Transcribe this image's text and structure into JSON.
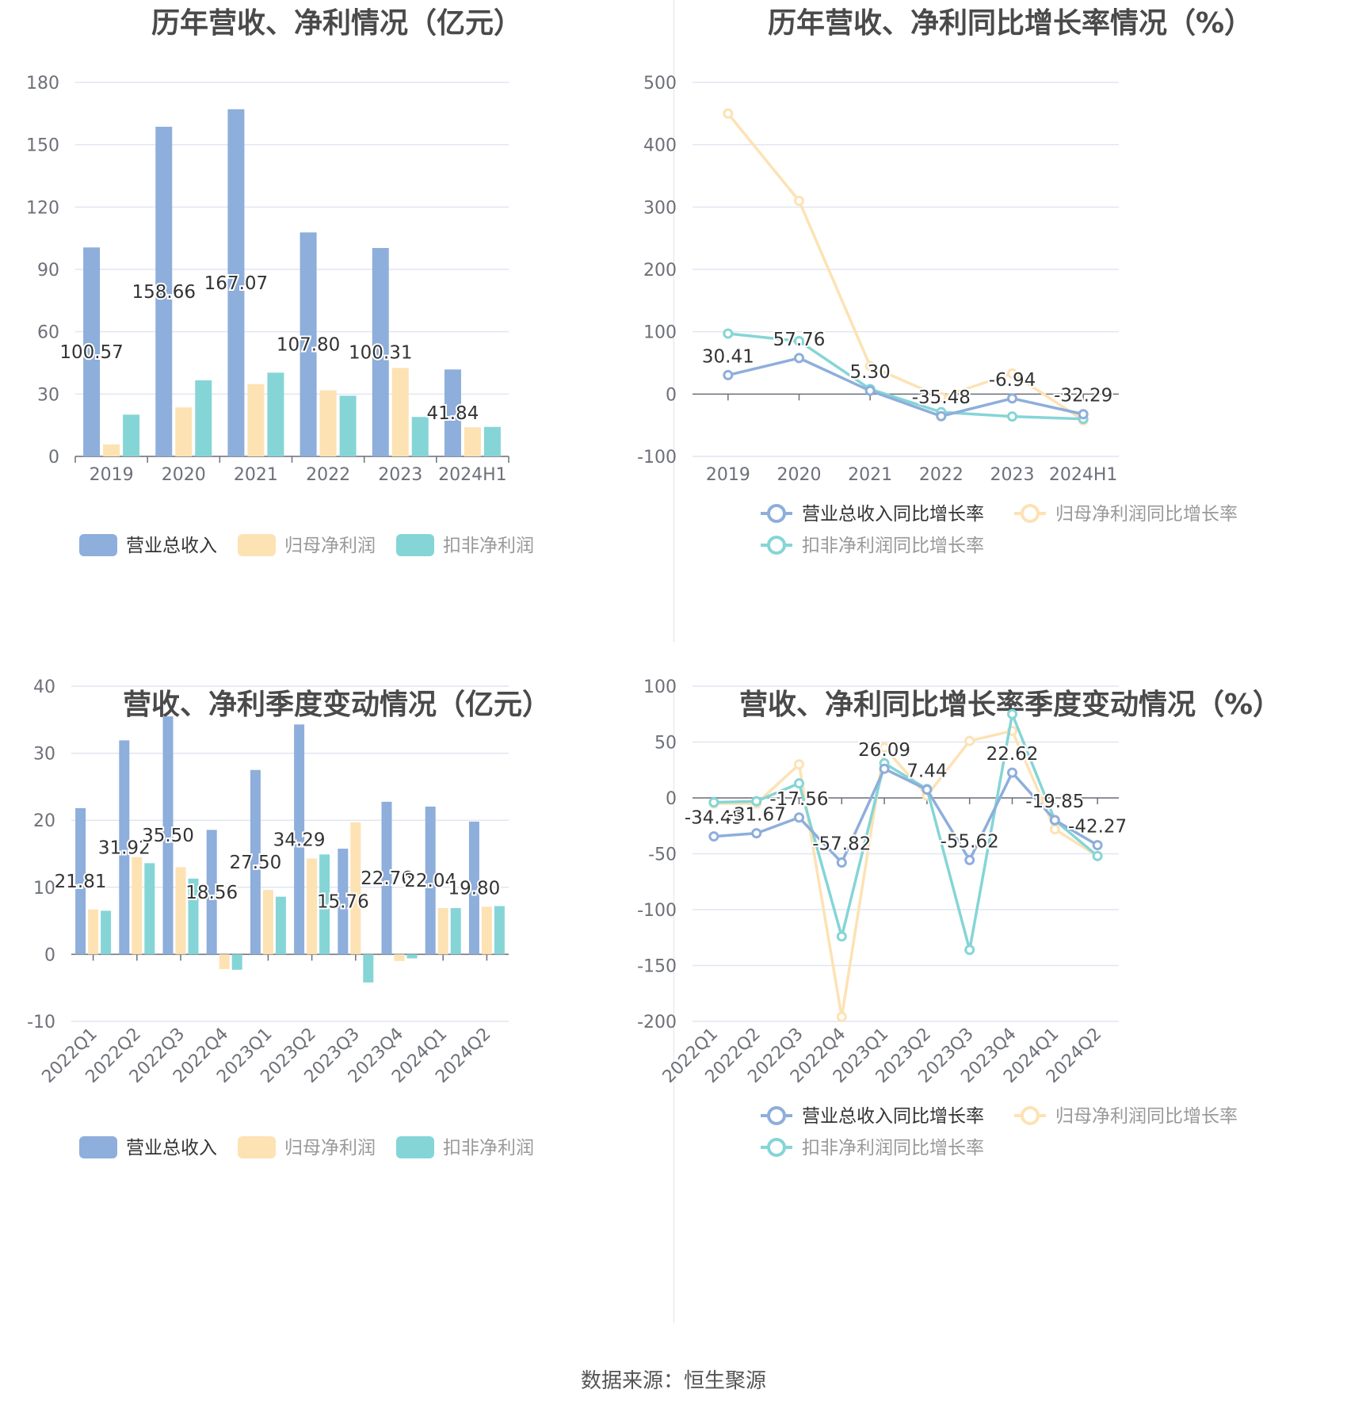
{
  "colors": {
    "revenue": "#8eaedb",
    "netprofit": "#fde2b4",
    "deducted": "#85d5d6",
    "axis": "#6e7079",
    "grid": "#e0e6f1",
    "text": "#333333"
  },
  "source_text": "数据来源：恒生聚源",
  "chart_data": [
    {
      "type": "bar",
      "title": "历年营收、净利情况（亿元）",
      "categories": [
        "2019",
        "2020",
        "2021",
        "2022",
        "2023",
        "2024H1"
      ],
      "ylim": [
        0,
        180
      ],
      "yticks": [
        "0",
        "30",
        "60",
        "90",
        "120",
        "150",
        "180"
      ],
      "grid": true,
      "legend_position": "bottom",
      "series": [
        {
          "name": "营业总收入",
          "values": [
            100.57,
            158.66,
            167.07,
            107.8,
            100.31,
            41.84
          ],
          "labels": [
            "100.57",
            "158.66",
            "167.07",
            "107.80",
            "100.31",
            "41.84"
          ]
        },
        {
          "name": "归母净利润",
          "values": [
            5.8,
            23.6,
            34.8,
            31.8,
            42.6,
            14.0
          ]
        },
        {
          "name": "扣非净利润",
          "values": [
            20.1,
            36.6,
            40.3,
            29.2,
            19.0,
            14.2
          ]
        }
      ]
    },
    {
      "type": "line",
      "title": "历年营收、净利同比增长率情况（%）",
      "categories": [
        "2019",
        "2020",
        "2021",
        "2022",
        "2023",
        "2024H1"
      ],
      "ylim": [
        -100,
        500
      ],
      "yticks": [
        "-100",
        "0",
        "100",
        "200",
        "300",
        "400",
        "500"
      ],
      "grid": true,
      "legend_position": "bottom",
      "series": [
        {
          "name": "营业总收入同比增长率",
          "values": [
            30.41,
            57.76,
            5.3,
            -35.48,
            -6.94,
            -32.29
          ],
          "labels": [
            "30.41",
            "57.76",
            "5.30",
            "-35.48",
            "-6.94",
            "-32.29"
          ]
        },
        {
          "name": "归母净利润同比增长率",
          "values": [
            450,
            310,
            45,
            -5,
            33,
            -42
          ]
        },
        {
          "name": "扣非净利润同比增长率",
          "values": [
            97,
            85,
            8,
            -29,
            -36,
            -40
          ]
        }
      ]
    },
    {
      "type": "bar",
      "title": "营收、净利季度变动情况（亿元）",
      "categories": [
        "2022Q1",
        "2022Q2",
        "2022Q3",
        "2022Q4",
        "2023Q1",
        "2023Q2",
        "2023Q3",
        "2023Q4",
        "2024Q1",
        "2024Q2"
      ],
      "ylim": [
        -10,
        40
      ],
      "yticks": [
        "-10",
        "0",
        "10",
        "20",
        "30",
        "40"
      ],
      "grid": true,
      "legend_position": "bottom",
      "series": [
        {
          "name": "营业总收入",
          "values": [
            21.81,
            31.92,
            35.5,
            18.56,
            27.5,
            34.29,
            15.76,
            22.76,
            22.04,
            19.8
          ],
          "labels": [
            "21.81",
            "31.92",
            "35.50",
            "18.56",
            "27.50",
            "34.29",
            "15.76",
            "22.76",
            "22.04",
            "19.80"
          ]
        },
        {
          "name": "归母净利润",
          "values": [
            6.7,
            14.5,
            13.0,
            -2.2,
            9.6,
            14.3,
            19.7,
            -1.0,
            6.9,
            7.1
          ]
        },
        {
          "name": "扣非净利润",
          "values": [
            6.5,
            13.6,
            11.3,
            -2.3,
            8.6,
            14.9,
            -4.2,
            -0.6,
            6.9,
            7.2
          ]
        }
      ]
    },
    {
      "type": "line",
      "title": "营收、净利同比增长率季度变动情况（%）",
      "categories": [
        "2022Q1",
        "2022Q2",
        "2022Q3",
        "2022Q4",
        "2023Q1",
        "2023Q2",
        "2023Q3",
        "2023Q4",
        "2024Q1",
        "2024Q2"
      ],
      "ylim": [
        -200,
        100
      ],
      "yticks": [
        "-200",
        "-150",
        "-100",
        "-50",
        "0",
        "50",
        "100"
      ],
      "grid": true,
      "legend_position": "bottom",
      "series": [
        {
          "name": "营业总收入同比增长率",
          "values": [
            -34.45,
            -31.67,
            -17.56,
            -57.82,
            26.09,
            7.44,
            -55.62,
            22.62,
            -19.85,
            -42.27
          ],
          "labels": [
            "-34.45",
            "-31.67",
            "-17.56",
            "-57.82",
            "26.09",
            "7.44",
            "-55.62",
            "22.62",
            "-19.85",
            "-42.27"
          ]
        },
        {
          "name": "归母净利润同比增长率",
          "values": [
            -5,
            -5,
            30,
            -196,
            45,
            2,
            51,
            60,
            -28,
            -52
          ]
        },
        {
          "name": "扣非净利润同比增长率",
          "values": [
            -4,
            -3,
            13,
            -124,
            31,
            8,
            -136,
            75,
            -20,
            -52
          ]
        }
      ]
    }
  ]
}
